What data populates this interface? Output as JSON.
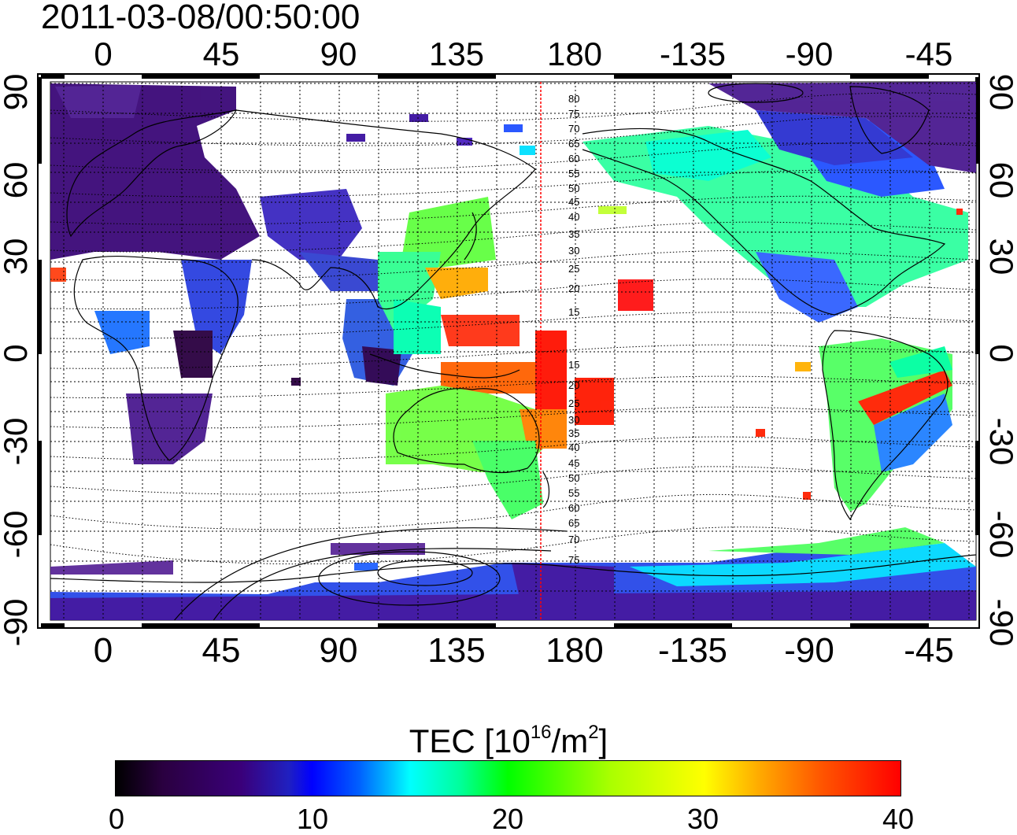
{
  "timestamp": "2011-03-08/00:50:00",
  "lon_ticks_top": [
    "0",
    "45",
    "90",
    "135",
    "180",
    "-135",
    "-90",
    "-45"
  ],
  "lon_ticks_bottom": [
    "0",
    "45",
    "90",
    "135",
    "180",
    "-135",
    "-90",
    "-45"
  ],
  "lat_ticks_left": [
    "90",
    "60",
    "30",
    "0",
    "-30",
    "-60",
    "-90"
  ],
  "lat_ticks_right": [
    "90",
    "60",
    "30",
    "0",
    "-30",
    "-60",
    "-90"
  ],
  "mag_lat_labels": [
    "80",
    "75",
    "70",
    "65",
    "60",
    "55",
    "50",
    "45",
    "40",
    "35",
    "30",
    "25",
    "20",
    "15",
    "15",
    "20",
    "25",
    "30",
    "35",
    "40",
    "45",
    "50",
    "55",
    "60",
    "65",
    "70",
    "75"
  ],
  "colorbar": {
    "title_main": "TEC  [10",
    "title_sup1": "16",
    "title_mid": "/m",
    "title_sup2": "2",
    "title_end": "]",
    "ticks": [
      "0",
      "10",
      "20",
      "30",
      "40"
    ],
    "colors": [
      "#000000",
      "#3a007a",
      "#0000ff",
      "#00ffff",
      "#00ff00",
      "#ffff00",
      "#ff0000"
    ]
  },
  "map": {
    "lon_range": [
      -20,
      335
    ],
    "lat_range": [
      -90,
      90
    ],
    "marker_longitude": 169,
    "marker_color": "#ff0000"
  }
}
